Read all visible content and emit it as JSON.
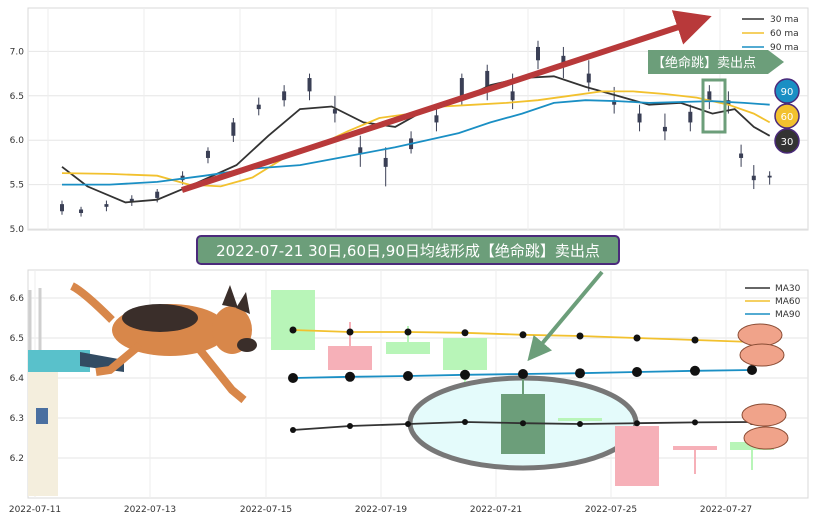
{
  "chart_data": [
    {
      "type": "candlestick",
      "ylim": [
        5.0,
        7.4
      ],
      "yticks": [
        "5.0",
        "5.5",
        "6.0",
        "6.5",
        "7.0"
      ],
      "grid": true,
      "legend_position": "top-right",
      "ma_series": [
        {
          "name": "30 ma",
          "color": "#333333",
          "points": [
            [
              0,
              5.7
            ],
            [
              8,
              5.48
            ],
            [
              20,
              5.3
            ],
            [
              30,
              5.33
            ],
            [
              40,
              5.48
            ],
            [
              55,
              5.72
            ],
            [
              65,
              6.05
            ],
            [
              75,
              6.35
            ],
            [
              85,
              6.38
            ],
            [
              95,
              6.2
            ],
            [
              105,
              6.15
            ],
            [
              115,
              6.35
            ],
            [
              125,
              6.45
            ],
            [
              135,
              6.62
            ],
            [
              145,
              6.7
            ],
            [
              155,
              6.72
            ],
            [
              165,
              6.6
            ],
            [
              175,
              6.5
            ],
            [
              185,
              6.4
            ],
            [
              195,
              6.42
            ],
            [
              205,
              6.3
            ],
            [
              212,
              6.35
            ],
            [
              218,
              6.15
            ],
            [
              223,
              6.05
            ]
          ]
        },
        {
          "name": "60 ma",
          "color": "#f2c12e",
          "points": [
            [
              0,
              5.63
            ],
            [
              15,
              5.62
            ],
            [
              30,
              5.6
            ],
            [
              40,
              5.5
            ],
            [
              50,
              5.48
            ],
            [
              60,
              5.58
            ],
            [
              70,
              5.8
            ],
            [
              80,
              5.93
            ],
            [
              90,
              6.1
            ],
            [
              100,
              6.25
            ],
            [
              110,
              6.3
            ],
            [
              120,
              6.38
            ],
            [
              130,
              6.4
            ],
            [
              140,
              6.42
            ],
            [
              150,
              6.45
            ],
            [
              160,
              6.5
            ],
            [
              170,
              6.55
            ],
            [
              180,
              6.55
            ],
            [
              190,
              6.52
            ],
            [
              200,
              6.48
            ],
            [
              210,
              6.4
            ],
            [
              218,
              6.3
            ],
            [
              223,
              6.2
            ]
          ]
        },
        {
          "name": "90 ma",
          "color": "#1a8fc4",
          "points": [
            [
              0,
              5.5
            ],
            [
              15,
              5.5
            ],
            [
              30,
              5.53
            ],
            [
              45,
              5.6
            ],
            [
              60,
              5.68
            ],
            [
              75,
              5.72
            ],
            [
              90,
              5.82
            ],
            [
              105,
              5.92
            ],
            [
              115,
              6.0
            ],
            [
              125,
              6.08
            ],
            [
              135,
              6.2
            ],
            [
              145,
              6.3
            ],
            [
              155,
              6.42
            ],
            [
              165,
              6.45
            ],
            [
              175,
              6.44
            ],
            [
              185,
              6.42
            ],
            [
              195,
              6.43
            ],
            [
              205,
              6.44
            ],
            [
              215,
              6.42
            ],
            [
              223,
              6.4
            ]
          ]
        }
      ],
      "candle_sample": [
        {
          "i": 0,
          "o": 5.28,
          "h": 5.32,
          "c": 5.2,
          "l": 5.16
        },
        {
          "i": 6,
          "o": 5.18,
          "h": 5.25,
          "c": 5.22,
          "l": 5.14
        },
        {
          "i": 14,
          "o": 5.25,
          "h": 5.32,
          "c": 5.28,
          "l": 5.2
        },
        {
          "i": 22,
          "o": 5.3,
          "h": 5.38,
          "c": 5.34,
          "l": 5.26
        },
        {
          "i": 30,
          "o": 5.35,
          "h": 5.45,
          "c": 5.42,
          "l": 5.3
        },
        {
          "i": 38,
          "o": 5.55,
          "h": 5.65,
          "c": 5.6,
          "l": 5.5
        },
        {
          "i": 46,
          "o": 5.8,
          "h": 5.92,
          "c": 5.88,
          "l": 5.74
        },
        {
          "i": 54,
          "o": 6.05,
          "h": 6.25,
          "c": 6.2,
          "l": 5.98
        },
        {
          "i": 62,
          "o": 6.35,
          "h": 6.48,
          "c": 6.4,
          "l": 6.28
        },
        {
          "i": 70,
          "o": 6.45,
          "h": 6.62,
          "c": 6.55,
          "l": 6.38
        },
        {
          "i": 78,
          "o": 6.55,
          "h": 6.75,
          "c": 6.7,
          "l": 6.45
        },
        {
          "i": 86,
          "o": 6.3,
          "h": 6.5,
          "c": 6.35,
          "l": 6.2
        },
        {
          "i": 94,
          "o": 5.85,
          "h": 6.05,
          "c": 5.92,
          "l": 5.7
        },
        {
          "i": 102,
          "o": 5.7,
          "h": 5.92,
          "c": 5.8,
          "l": 5.48
        },
        {
          "i": 110,
          "o": 5.9,
          "h": 6.1,
          "c": 6.02,
          "l": 5.85
        },
        {
          "i": 118,
          "o": 6.2,
          "h": 6.35,
          "c": 6.28,
          "l": 6.1
        },
        {
          "i": 126,
          "o": 6.5,
          "h": 6.75,
          "c": 6.7,
          "l": 6.4
        },
        {
          "i": 134,
          "o": 6.6,
          "h": 6.85,
          "c": 6.78,
          "l": 6.45
        },
        {
          "i": 142,
          "o": 6.45,
          "h": 6.75,
          "c": 6.55,
          "l": 6.35
        },
        {
          "i": 150,
          "o": 6.9,
          "h": 7.12,
          "c": 7.05,
          "l": 6.8
        },
        {
          "i": 158,
          "o": 6.85,
          "h": 7.05,
          "c": 6.95,
          "l": 6.7
        },
        {
          "i": 166,
          "o": 6.65,
          "h": 6.9,
          "c": 6.75,
          "l": 6.55
        },
        {
          "i": 174,
          "o": 6.4,
          "h": 6.6,
          "c": 6.45,
          "l": 6.3
        },
        {
          "i": 182,
          "o": 6.2,
          "h": 6.4,
          "c": 6.3,
          "l": 6.1
        },
        {
          "i": 190,
          "o": 6.1,
          "h": 6.3,
          "c": 6.15,
          "l": 6.0
        },
        {
          "i": 198,
          "o": 6.2,
          "h": 6.4,
          "c": 6.32,
          "l": 6.1
        },
        {
          "i": 204,
          "o": 6.45,
          "h": 6.62,
          "c": 6.55,
          "l": 6.35
        },
        {
          "i": 210,
          "o": 6.4,
          "h": 6.55,
          "c": 6.45,
          "l": 6.3
        },
        {
          "i": 214,
          "o": 5.85,
          "h": 5.95,
          "c": 5.8,
          "l": 5.7
        },
        {
          "i": 218,
          "o": 5.6,
          "h": 5.72,
          "c": 5.55,
          "l": 5.45
        },
        {
          "i": 223,
          "o": 5.58,
          "h": 5.65,
          "c": 5.6,
          "l": 5.5
        }
      ],
      "annotation_sell_point": "【绝命跳】卖出点",
      "badges": [
        "90",
        "60",
        "30"
      ],
      "badge_colors": [
        "#1a8fc4",
        "#f2c12e",
        "#333333"
      ]
    },
    {
      "type": "candlestick",
      "ylim": [
        6.1,
        6.67
      ],
      "yticks": [
        "6.2",
        "6.3",
        "6.4",
        "6.5",
        "6.6"
      ],
      "xticks": [
        "2022-07-11",
        "2022-07-13",
        "2022-07-15",
        "2022-07-19",
        "2022-07-21",
        "2022-07-25",
        "2022-07-27"
      ],
      "legend_position": "top-right",
      "grid": true,
      "legend": [
        {
          "name": "MA30",
          "color": "#333333"
        },
        {
          "name": "MA60",
          "color": "#f2c12e"
        },
        {
          "name": "MA90",
          "color": "#1a8fc4"
        }
      ],
      "days": [
        {
          "date": "2022-07-15",
          "o": 6.47,
          "c": 6.62,
          "h": 6.62,
          "l": 6.47,
          "ma30": 6.27,
          "ma60": 6.52,
          "ma90": 6.4
        },
        {
          "date": "2022-07-18",
          "o": 6.48,
          "c": 6.42,
          "h": 6.54,
          "l": 6.42,
          "ma30": 6.28,
          "ma60": 6.515,
          "ma90": 6.403
        },
        {
          "date": "2022-07-19",
          "o": 6.46,
          "c": 6.49,
          "h": 6.53,
          "l": 6.46,
          "ma30": 6.285,
          "ma60": 6.515,
          "ma90": 6.405
        },
        {
          "date": "2022-07-20",
          "o": 6.42,
          "c": 6.5,
          "h": 6.5,
          "l": 6.39,
          "ma30": 6.29,
          "ma60": 6.513,
          "ma90": 6.408
        },
        {
          "date": "2022-07-21",
          "o": 6.36,
          "c": 6.21,
          "h": 6.41,
          "l": 6.21,
          "ma30": 6.287,
          "ma60": 6.508,
          "ma90": 6.41
        },
        {
          "date": "2022-07-22",
          "o": 6.3,
          "c": 6.3,
          "h": 6.3,
          "l": 6.3,
          "ma30": 6.285,
          "ma60": 6.505,
          "ma90": 6.412
        },
        {
          "date": "2022-07-25",
          "o": 6.28,
          "c": 6.13,
          "h": 6.28,
          "l": 6.13,
          "ma30": 6.287,
          "ma60": 6.5,
          "ma90": 6.415
        },
        {
          "date": "2022-07-26",
          "o": 6.23,
          "c": 6.22,
          "h": 6.23,
          "l": 6.16,
          "ma30": 6.289,
          "ma60": 6.495,
          "ma90": 6.418
        },
        {
          "date": "2022-07-27",
          "o": 6.22,
          "c": 6.24,
          "h": 6.25,
          "l": 6.17,
          "ma30": 6.29,
          "ma60": 6.49,
          "ma90": 6.42
        },
        {
          "date": "2022-07-28",
          "o": 6.22,
          "c": 6.18,
          "h": 6.23,
          "l": 6.16,
          "ma30": 6.282,
          "ma60": 6.485,
          "ma90": 6.425
        }
      ],
      "headline": "2022-07-21 30日,60日,90日均线形成【绝命跳】卖出点"
    }
  ],
  "colors": {
    "up": "#b8f5b8",
    "down": "#f6b0b8",
    "sell_candle": "#6c9e7a",
    "trend_arrow": "#b8393a",
    "headline_bg": "#6c9e7a",
    "headline_border": "#4b2a7b",
    "ellipse_fill": "#e4fbfb",
    "ellipse_stroke": "#777777"
  }
}
